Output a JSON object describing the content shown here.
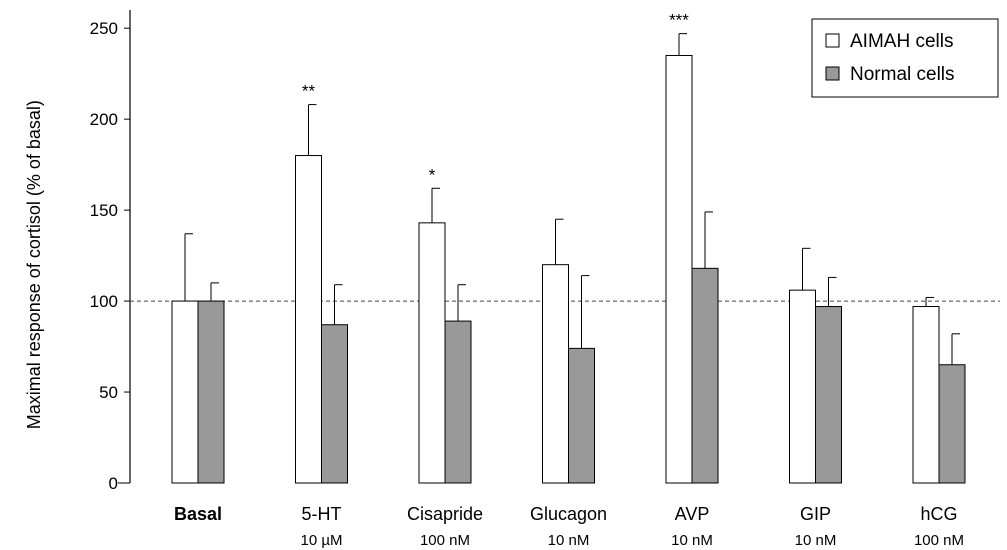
{
  "chart_data": {
    "type": "bar",
    "ylabel": "Maximal response of cortisol (% of basal)",
    "ylim": [
      0,
      260
    ],
    "yticks": [
      0,
      50,
      100,
      150,
      200,
      250
    ],
    "reference_line": 100,
    "categories": [
      "Basal",
      "5-HT",
      "Cisapride",
      "Glucagon",
      "AVP",
      "GIP",
      "hCG"
    ],
    "sublabels": [
      "",
      "10 µM",
      "100 nM",
      "10 nM",
      "10 nM",
      "10 nM",
      "100 nM"
    ],
    "series": [
      {
        "name": "AIMAH cells",
        "color": "#ffffff",
        "values": [
          100,
          180,
          143,
          120,
          235,
          106,
          97
        ],
        "errors": [
          37,
          28,
          19,
          25,
          12,
          23,
          5
        ],
        "significance": [
          "",
          "**",
          "*",
          "",
          "***",
          "",
          ""
        ]
      },
      {
        "name": "Normal cells",
        "color": "#999999",
        "values": [
          100,
          87,
          89,
          74,
          118,
          97,
          65
        ],
        "errors": [
          10,
          22,
          20,
          40,
          31,
          16,
          17
        ],
        "significance": [
          "",
          "",
          "",
          "",
          "",
          "",
          ""
        ]
      }
    ],
    "legend": "top-right",
    "grid": false
  }
}
